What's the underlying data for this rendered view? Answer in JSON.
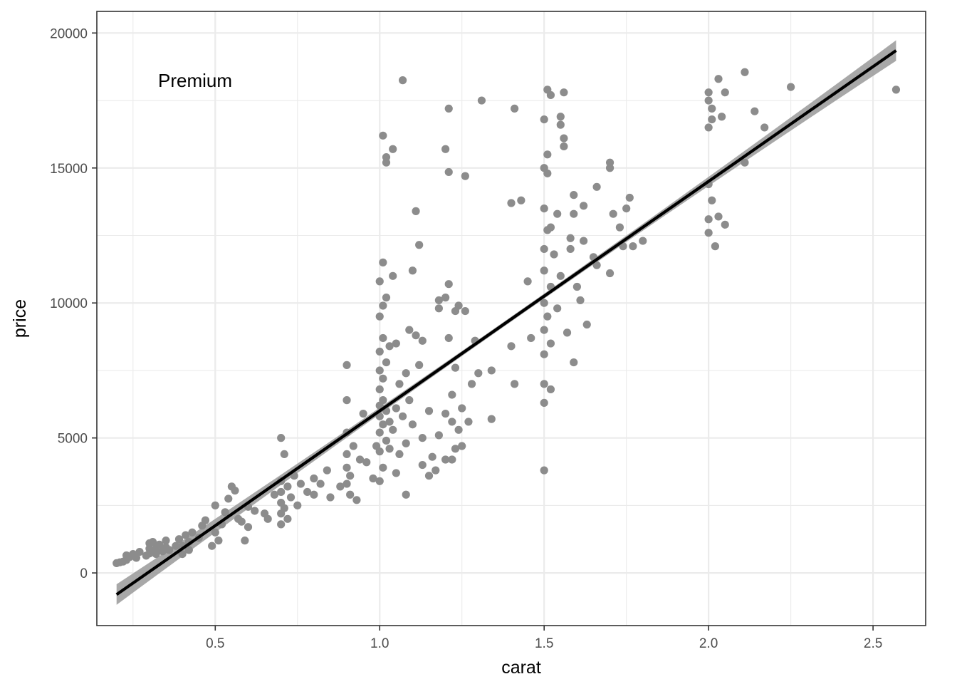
{
  "chart_data": {
    "type": "scatter",
    "title": "",
    "xlabel": "carat",
    "ylabel": "price",
    "annotation": "Premium",
    "xlim": [
      0.14,
      2.66
    ],
    "ylim": [
      -1950,
      20800
    ],
    "x_ticks": [
      0.5,
      1.0,
      1.5,
      2.0,
      2.5
    ],
    "x_tick_labels": [
      "0.5",
      "1.0",
      "1.5",
      "2.0",
      "2.5"
    ],
    "x_minor_ticks": [
      0.25,
      0.75,
      1.25,
      1.75,
      2.25
    ],
    "y_ticks": [
      0,
      5000,
      10000,
      15000,
      20000
    ],
    "y_tick_labels": [
      "0",
      "5000",
      "10000",
      "15000",
      "20000"
    ],
    "y_minor_ticks": [
      2500,
      7500,
      12500,
      17500
    ],
    "grid": true,
    "colors": {
      "points": "#8c8c8c",
      "line": "#000000",
      "band": "#999999",
      "grid": "#ebebeb",
      "border": "#333333"
    },
    "fit_line": {
      "x": [
        0.2,
        2.57
      ],
      "y": [
        -800,
        19350
      ],
      "ci_halfwidth_end": 380,
      "ci_halfwidth_mid": 90
    },
    "points": [
      [
        0.2,
        362
      ],
      [
        0.21,
        394
      ],
      [
        0.22,
        420
      ],
      [
        0.23,
        480
      ],
      [
        0.23,
        650
      ],
      [
        0.24,
        590
      ],
      [
        0.25,
        700
      ],
      [
        0.26,
        560
      ],
      [
        0.27,
        780
      ],
      [
        0.29,
        640
      ],
      [
        0.3,
        720
      ],
      [
        0.3,
        900
      ],
      [
        0.3,
        1100
      ],
      [
        0.31,
        850
      ],
      [
        0.31,
        1150
      ],
      [
        0.32,
        900
      ],
      [
        0.32,
        700
      ],
      [
        0.33,
        1050
      ],
      [
        0.34,
        800
      ],
      [
        0.35,
        950
      ],
      [
        0.35,
        1200
      ],
      [
        0.36,
        850
      ],
      [
        0.38,
        1000
      ],
      [
        0.39,
        1250
      ],
      [
        0.4,
        700
      ],
      [
        0.4,
        1000
      ],
      [
        0.41,
        1400
      ],
      [
        0.42,
        850
      ],
      [
        0.42,
        1150
      ],
      [
        0.43,
        1500
      ],
      [
        0.45,
        1300
      ],
      [
        0.46,
        1750
      ],
      [
        0.47,
        1950
      ],
      [
        0.49,
        1000
      ],
      [
        0.5,
        1500
      ],
      [
        0.5,
        2500
      ],
      [
        0.51,
        1200
      ],
      [
        0.52,
        1800
      ],
      [
        0.53,
        2250
      ],
      [
        0.54,
        2750
      ],
      [
        0.55,
        3200
      ],
      [
        0.56,
        3050
      ],
      [
        0.57,
        2000
      ],
      [
        0.58,
        1900
      ],
      [
        0.59,
        1200
      ],
      [
        0.6,
        2450
      ],
      [
        0.6,
        1700
      ],
      [
        0.62,
        2300
      ],
      [
        0.65,
        2200
      ],
      [
        0.66,
        2000
      ],
      [
        0.68,
        2900
      ],
      [
        0.7,
        1800
      ],
      [
        0.7,
        2200
      ],
      [
        0.7,
        2600
      ],
      [
        0.7,
        3000
      ],
      [
        0.7,
        3400
      ],
      [
        0.7,
        5000
      ],
      [
        0.71,
        2400
      ],
      [
        0.71,
        4400
      ],
      [
        0.72,
        2000
      ],
      [
        0.72,
        3200
      ],
      [
        0.73,
        2800
      ],
      [
        0.74,
        3600
      ],
      [
        0.75,
        2500
      ],
      [
        0.76,
        3300
      ],
      [
        0.78,
        3000
      ],
      [
        0.8,
        2900
      ],
      [
        0.8,
        3500
      ],
      [
        0.82,
        3300
      ],
      [
        0.84,
        3800
      ],
      [
        0.85,
        2800
      ],
      [
        0.88,
        3200
      ],
      [
        0.9,
        3300
      ],
      [
        0.9,
        3900
      ],
      [
        0.9,
        4400
      ],
      [
        0.9,
        5200
      ],
      [
        0.9,
        6400
      ],
      [
        0.9,
        7700
      ],
      [
        0.91,
        3600
      ],
      [
        0.91,
        2900
      ],
      [
        0.92,
        4700
      ],
      [
        0.93,
        2700
      ],
      [
        0.94,
        4200
      ],
      [
        0.95,
        5900
      ],
      [
        0.96,
        4100
      ],
      [
        0.98,
        3500
      ],
      [
        0.99,
        4700
      ],
      [
        1.0,
        3400
      ],
      [
        1.0,
        4500
      ],
      [
        1.0,
        5200
      ],
      [
        1.0,
        5800
      ],
      [
        1.0,
        6200
      ],
      [
        1.0,
        6800
      ],
      [
        1.0,
        7500
      ],
      [
        1.0,
        8200
      ],
      [
        1.0,
        9500
      ],
      [
        1.0,
        10800
      ],
      [
        1.01,
        3900
      ],
      [
        1.01,
        5500
      ],
      [
        1.01,
        6400
      ],
      [
        1.01,
        7200
      ],
      [
        1.01,
        8700
      ],
      [
        1.01,
        9900
      ],
      [
        1.01,
        11500
      ],
      [
        1.01,
        16200
      ],
      [
        1.02,
        4900
      ],
      [
        1.02,
        6000
      ],
      [
        1.02,
        7800
      ],
      [
        1.02,
        10200
      ],
      [
        1.02,
        15400
      ],
      [
        1.02,
        15200
      ],
      [
        1.03,
        4600
      ],
      [
        1.03,
        5600
      ],
      [
        1.03,
        8400
      ],
      [
        1.04,
        5300
      ],
      [
        1.04,
        11000
      ],
      [
        1.04,
        15700
      ],
      [
        1.05,
        3700
      ],
      [
        1.05,
        6100
      ],
      [
        1.05,
        8500
      ],
      [
        1.06,
        4400
      ],
      [
        1.06,
        7000
      ],
      [
        1.07,
        5800
      ],
      [
        1.07,
        18250
      ],
      [
        1.08,
        4800
      ],
      [
        1.08,
        7400
      ],
      [
        1.08,
        2900
      ],
      [
        1.09,
        6400
      ],
      [
        1.09,
        9000
      ],
      [
        1.1,
        11200
      ],
      [
        1.1,
        5500
      ],
      [
        1.11,
        13400
      ],
      [
        1.11,
        8800
      ],
      [
        1.12,
        7700
      ],
      [
        1.12,
        12150
      ],
      [
        1.13,
        4000
      ],
      [
        1.13,
        5000
      ],
      [
        1.13,
        8600
      ],
      [
        1.15,
        3600
      ],
      [
        1.15,
        6000
      ],
      [
        1.16,
        4300
      ],
      [
        1.17,
        3800
      ],
      [
        1.18,
        5100
      ],
      [
        1.18,
        10100
      ],
      [
        1.18,
        9800
      ],
      [
        1.2,
        4200
      ],
      [
        1.2,
        5900
      ],
      [
        1.2,
        10200
      ],
      [
        1.2,
        15700
      ],
      [
        1.21,
        17200
      ],
      [
        1.21,
        14850
      ],
      [
        1.21,
        10700
      ],
      [
        1.21,
        8700
      ],
      [
        1.22,
        4200
      ],
      [
        1.22,
        5600
      ],
      [
        1.22,
        6600
      ],
      [
        1.23,
        4600
      ],
      [
        1.23,
        7600
      ],
      [
        1.23,
        9700
      ],
      [
        1.24,
        9900
      ],
      [
        1.24,
        5300
      ],
      [
        1.25,
        6100
      ],
      [
        1.25,
        4700
      ],
      [
        1.26,
        14700
      ],
      [
        1.26,
        9700
      ],
      [
        1.27,
        5600
      ],
      [
        1.28,
        7000
      ],
      [
        1.29,
        8600
      ],
      [
        1.3,
        7400
      ],
      [
        1.31,
        17500
      ],
      [
        1.34,
        7500
      ],
      [
        1.34,
        5700
      ],
      [
        1.4,
        8400
      ],
      [
        1.4,
        13700
      ],
      [
        1.41,
        17200
      ],
      [
        1.41,
        7000
      ],
      [
        1.43,
        13800
      ],
      [
        1.45,
        10800
      ],
      [
        1.46,
        8700
      ],
      [
        1.5,
        3800
      ],
      [
        1.5,
        6300
      ],
      [
        1.5,
        7000
      ],
      [
        1.5,
        8100
      ],
      [
        1.5,
        9000
      ],
      [
        1.5,
        10000
      ],
      [
        1.5,
        11200
      ],
      [
        1.5,
        12000
      ],
      [
        1.5,
        13500
      ],
      [
        1.5,
        15000
      ],
      [
        1.5,
        16800
      ],
      [
        1.51,
        17900
      ],
      [
        1.51,
        15500
      ],
      [
        1.51,
        14800
      ],
      [
        1.51,
        12700
      ],
      [
        1.51,
        9500
      ],
      [
        1.52,
        17700
      ],
      [
        1.52,
        12800
      ],
      [
        1.52,
        10600
      ],
      [
        1.52,
        8500
      ],
      [
        1.52,
        6800
      ],
      [
        1.53,
        11800
      ],
      [
        1.54,
        9800
      ],
      [
        1.54,
        13300
      ],
      [
        1.55,
        16900
      ],
      [
        1.55,
        16600
      ],
      [
        1.55,
        11000
      ],
      [
        1.56,
        17800
      ],
      [
        1.56,
        16100
      ],
      [
        1.56,
        15800
      ],
      [
        1.57,
        8900
      ],
      [
        1.58,
        12400
      ],
      [
        1.58,
        12000
      ],
      [
        1.59,
        14000
      ],
      [
        1.59,
        13300
      ],
      [
        1.59,
        7800
      ],
      [
        1.6,
        10600
      ],
      [
        1.61,
        10100
      ],
      [
        1.62,
        13600
      ],
      [
        1.62,
        12300
      ],
      [
        1.63,
        9200
      ],
      [
        1.65,
        11700
      ],
      [
        1.66,
        14300
      ],
      [
        1.66,
        11400
      ],
      [
        1.7,
        15200
      ],
      [
        1.7,
        15000
      ],
      [
        1.7,
        11100
      ],
      [
        1.71,
        13300
      ],
      [
        1.73,
        12800
      ],
      [
        1.74,
        12100
      ],
      [
        1.75,
        13500
      ],
      [
        1.76,
        13900
      ],
      [
        1.77,
        12100
      ],
      [
        1.8,
        12300
      ],
      [
        2.0,
        17800
      ],
      [
        2.0,
        17500
      ],
      [
        2.0,
        16500
      ],
      [
        2.0,
        14400
      ],
      [
        2.0,
        13100
      ],
      [
        2.0,
        12600
      ],
      [
        2.01,
        17200
      ],
      [
        2.01,
        16800
      ],
      [
        2.01,
        13800
      ],
      [
        2.02,
        12100
      ],
      [
        2.03,
        13200
      ],
      [
        2.03,
        18300
      ],
      [
        2.04,
        16900
      ],
      [
        2.05,
        17800
      ],
      [
        2.05,
        12900
      ],
      [
        2.11,
        18550
      ],
      [
        2.11,
        15200
      ],
      [
        2.14,
        17100
      ],
      [
        2.17,
        16500
      ],
      [
        2.25,
        18000
      ],
      [
        2.57,
        17900
      ]
    ]
  }
}
